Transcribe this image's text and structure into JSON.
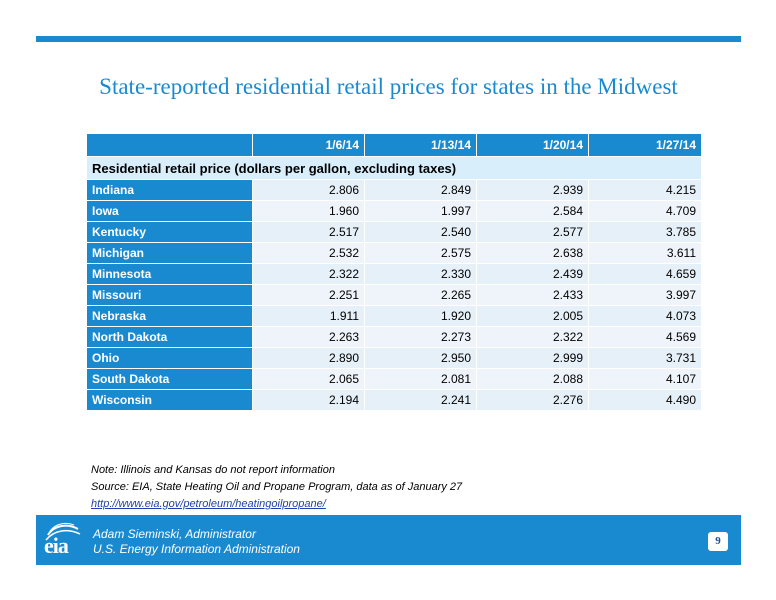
{
  "title": "State-reported residential retail prices for states in the Midwest",
  "table": {
    "headers": [
      "",
      "1/6/14",
      "1/13/14",
      "1/20/14",
      "1/27/14"
    ],
    "section_label": "Residential retail price (dollars per gallon, excluding taxes)",
    "rows": [
      {
        "state": "Indiana",
        "values": [
          "2.806",
          "2.849",
          "2.939",
          "4.215"
        ]
      },
      {
        "state": "Iowa",
        "values": [
          "1.960",
          "1.997",
          "2.584",
          "4.709"
        ]
      },
      {
        "state": "Kentucky",
        "values": [
          "2.517",
          "2.540",
          "2.577",
          "3.785"
        ]
      },
      {
        "state": "Michigan",
        "values": [
          "2.532",
          "2.575",
          "2.638",
          "3.611"
        ]
      },
      {
        "state": "Minnesota",
        "values": [
          "2.322",
          "2.330",
          "2.439",
          "4.659"
        ]
      },
      {
        "state": "Missouri",
        "values": [
          "2.251",
          "2.265",
          "2.433",
          "3.997"
        ]
      },
      {
        "state": "Nebraska",
        "values": [
          "1.911",
          "1.920",
          "2.005",
          "4.073"
        ]
      },
      {
        "state": "North Dakota",
        "values": [
          "2.263",
          "2.273",
          "2.322",
          "4.569"
        ]
      },
      {
        "state": "Ohio",
        "values": [
          "2.890",
          "2.950",
          "2.999",
          "3.731"
        ]
      },
      {
        "state": "South Dakota",
        "values": [
          "2.065",
          "2.081",
          "2.088",
          "4.107"
        ]
      },
      {
        "state": "Wisconsin",
        "values": [
          "2.194",
          "2.241",
          "2.276",
          "4.490"
        ]
      }
    ]
  },
  "notes": {
    "note": "Note: Illinois and Kansas do not report information",
    "source": "Source: EIA, State Heating Oil and Propane Program, data as of January 27",
    "link": "http://www.eia.gov/petroleum/heatingoilpropane/"
  },
  "footer": {
    "logo_text": "eia",
    "name": "Adam Sieminski, Administrator",
    "org": "U.S. Energy Information Administration",
    "page_number": "9"
  },
  "colors": {
    "accent": "#1a8ad0",
    "section_fill": "#d9eefb",
    "cell_fill": "#e6f0f8"
  }
}
